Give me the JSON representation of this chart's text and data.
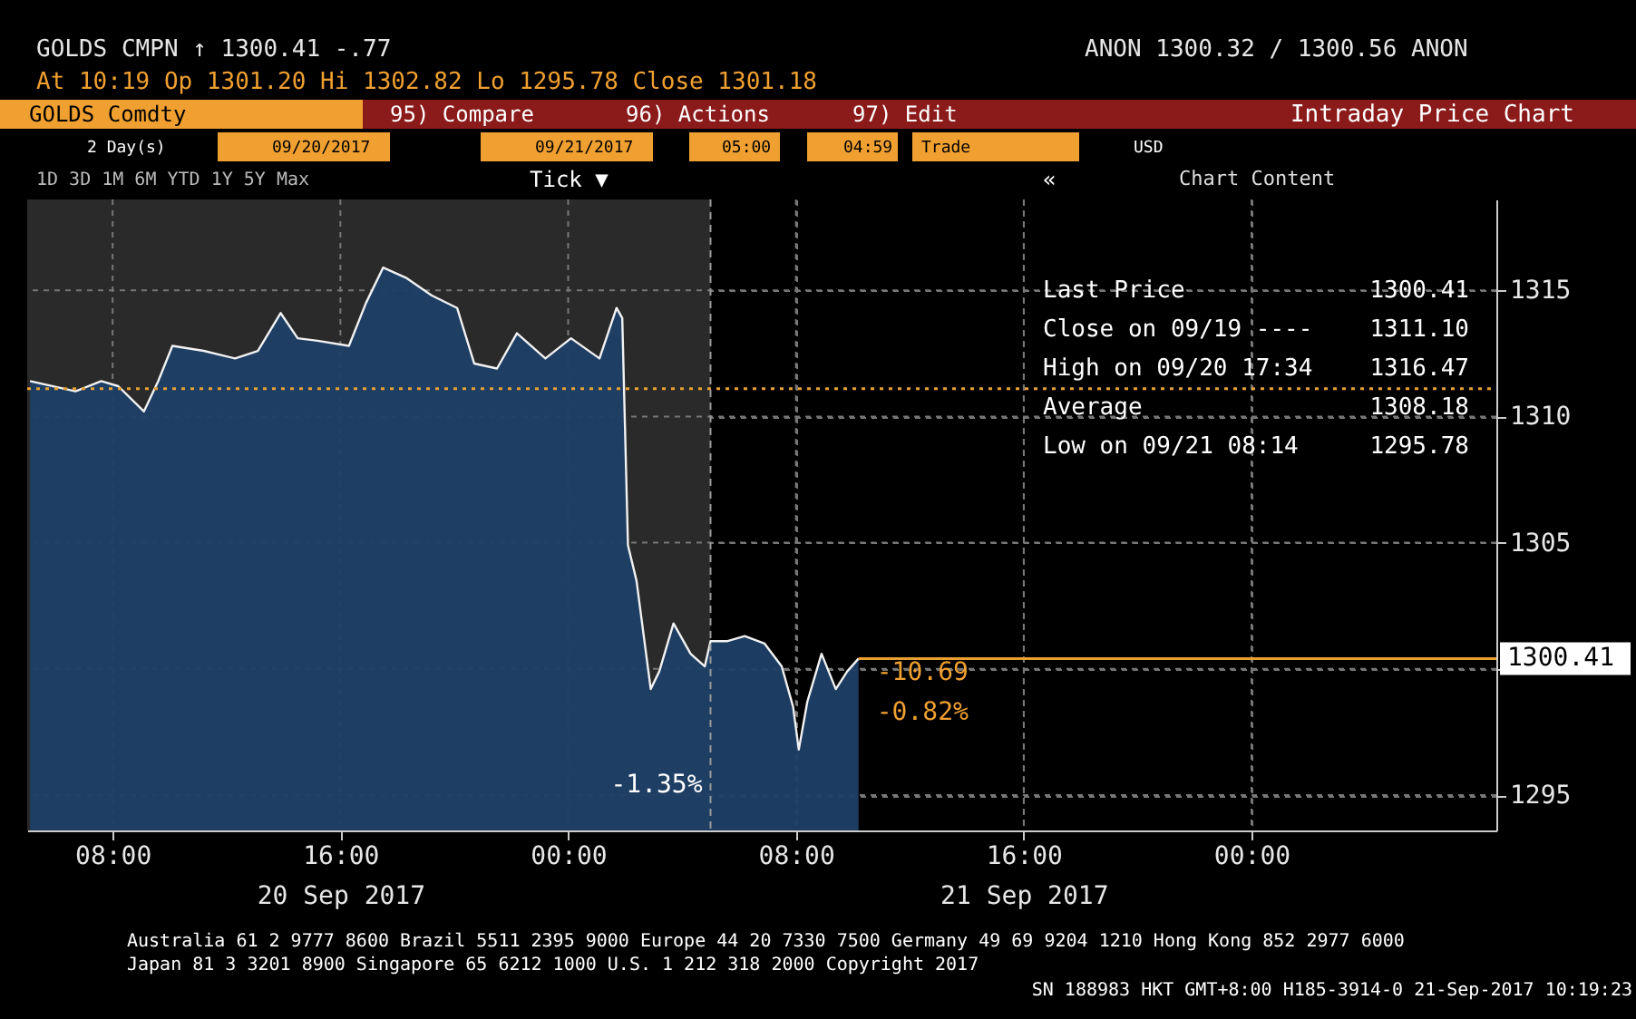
{
  "chart_data": {
    "type": "area",
    "x": [
      "2017-09-20T05:06",
      "2017-09-20T06:42",
      "2017-09-20T07:36",
      "2017-09-20T08:12",
      "2017-09-20T09:06",
      "2017-09-20T09:36",
      "2017-09-20T10:06",
      "2017-09-20T11:12",
      "2017-09-20T12:18",
      "2017-09-20T13:06",
      "2017-09-20T13:54",
      "2017-09-20T14:30",
      "2017-09-20T15:12",
      "2017-09-20T16:18",
      "2017-09-20T16:54",
      "2017-09-20T17:30",
      "2017-09-20T18:18",
      "2017-09-20T19:12",
      "2017-09-20T20:06",
      "2017-09-20T20:42",
      "2017-09-20T21:30",
      "2017-09-20T22:12",
      "2017-09-20T23:12",
      "2017-09-21T00:06",
      "2017-09-21T01:06",
      "2017-09-21T01:42",
      "2017-09-21T01:54",
      "2017-09-21T02:06",
      "2017-09-21T02:24",
      "2017-09-21T02:54",
      "2017-09-21T03:12",
      "2017-09-21T03:42",
      "2017-09-21T04:18",
      "2017-09-21T04:48",
      "2017-09-21T05:00",
      "2017-09-21T05:36",
      "2017-09-21T06:12",
      "2017-09-21T06:54",
      "2017-09-21T07:30",
      "2017-09-21T07:54",
      "2017-09-21T08:06",
      "2017-09-21T08:24",
      "2017-09-21T08:54",
      "2017-09-21T09:24",
      "2017-09-21T09:48",
      "2017-09-21T10:12"
    ],
    "series": [
      {
        "color": "#1e3f66",
        "values": [
          1311.4,
          1311.0,
          1311.4,
          1311.2,
          1310.2,
          1311.4,
          1312.8,
          1312.6,
          1312.3,
          1312.6,
          1314.1,
          1313.1,
          1313.0,
          1312.8,
          1314.5,
          1315.9,
          1315.5,
          1314.8,
          1314.3,
          1312.1,
          1311.9,
          1313.3,
          1312.3,
          1313.1,
          1312.3,
          1314.3,
          1313.9,
          1304.9,
          1303.5,
          1299.2,
          1299.9,
          1301.8,
          1300.6,
          1300.1,
          1301.1,
          1301.1,
          1301.3,
          1301.0,
          1300.1,
          1298.5,
          1296.8,
          1298.7,
          1300.6,
          1299.2,
          1299.9,
          1300.41
        ]
      }
    ],
    "xlim": [
      "2017-09-20T05:00",
      "2017-09-22T08:36"
    ],
    "xticks": [
      {
        "value": "2017-09-20T08:00",
        "label": "08:00"
      },
      {
        "value": "2017-09-20T16:00",
        "label": "16:00\n20 Sep 2017"
      },
      {
        "value": "2017-09-21T00:00",
        "label": "00:00"
      },
      {
        "value": "2017-09-21T08:00",
        "label": "08:00"
      },
      {
        "value": "2017-09-21T16:00",
        "label": "16:00\n21 Sep 2017"
      },
      {
        "value": "2017-09-22T00:00",
        "label": "00:00"
      }
    ],
    "ylim": [
      1293.6,
      1318.6
    ],
    "yticks": [
      1295,
      {
        "value": 1300,
        "label": null
      },
      1305,
      1310,
      1315
    ],
    "grid": true,
    "ref_lines": [
      {
        "axis": "y",
        "value": 1311.1,
        "color": "#e8a030",
        "line_style": "dotted"
      },
      {
        "axis": "y",
        "value": 1300.41,
        "label": "1300.41",
        "color": "#e8a030",
        "line_style": "solid"
      },
      {
        "axis": "x",
        "value": "2017-09-21T05:00",
        "color": "#9a9a9a",
        "line_style": "dashed"
      }
    ],
    "bands": [
      {
        "axis": "x",
        "from": "2017-09-20T05:00",
        "to": "2017-09-21T05:00",
        "color": "#2a2a2a"
      }
    ],
    "annotations": [
      "GOLDS   CMPN ↑ 1300.41   -.77",
      "ANON   1300.32 / 1300.56   ANON",
      "At 10:19   Op 1301.20   Hi 1302.82   Lo 1295.78   Close 1301.18",
      "GOLDS Comdty",
      "95) Compare",
      "96) Actions",
      "97) Edit",
      "Intraday Price Chart",
      "2 Day(s)",
      "09/20/2017",
      "09/21/2017",
      "05:00",
      "04:59",
      "Trade",
      "USD",
      "1D 3D 1M 6M YTD 1Y 5Y Max",
      "Tick ▼",
      "«",
      "Chart Content",
      "Last Price",
      "1300.41",
      "Close on 09/19 ----",
      "1311.10",
      "High on 09/20 17:34",
      "1316.47",
      "Average",
      "1308.18",
      "Low on 09/21 08:14",
      "1295.78",
      "Australia 61 2 9777 8600 Brazil 5511 2395 9000 Europe 44 20 7330 7500 Germany 49 69 9204 1210 Hong Kong 852 2977 6000",
      "Japan 81 3 3201 8900    Singapore 65 6212 1000    U.S. 1 212 318 2000    Copyright 2017",
      "SN 188983 HKT  GMT+8:00 H185-3914-0 21-Sep-2017 10:19:23",
      "-1.35%",
      {
        "text": "-10.69",
        "x": "2017-09-21T10:12",
        "y": 1300.41
      },
      {
        "text": "-0.82%",
        "x": "2017-09-21T10:12",
        "y": 1300.41
      }
    ]
  }
}
